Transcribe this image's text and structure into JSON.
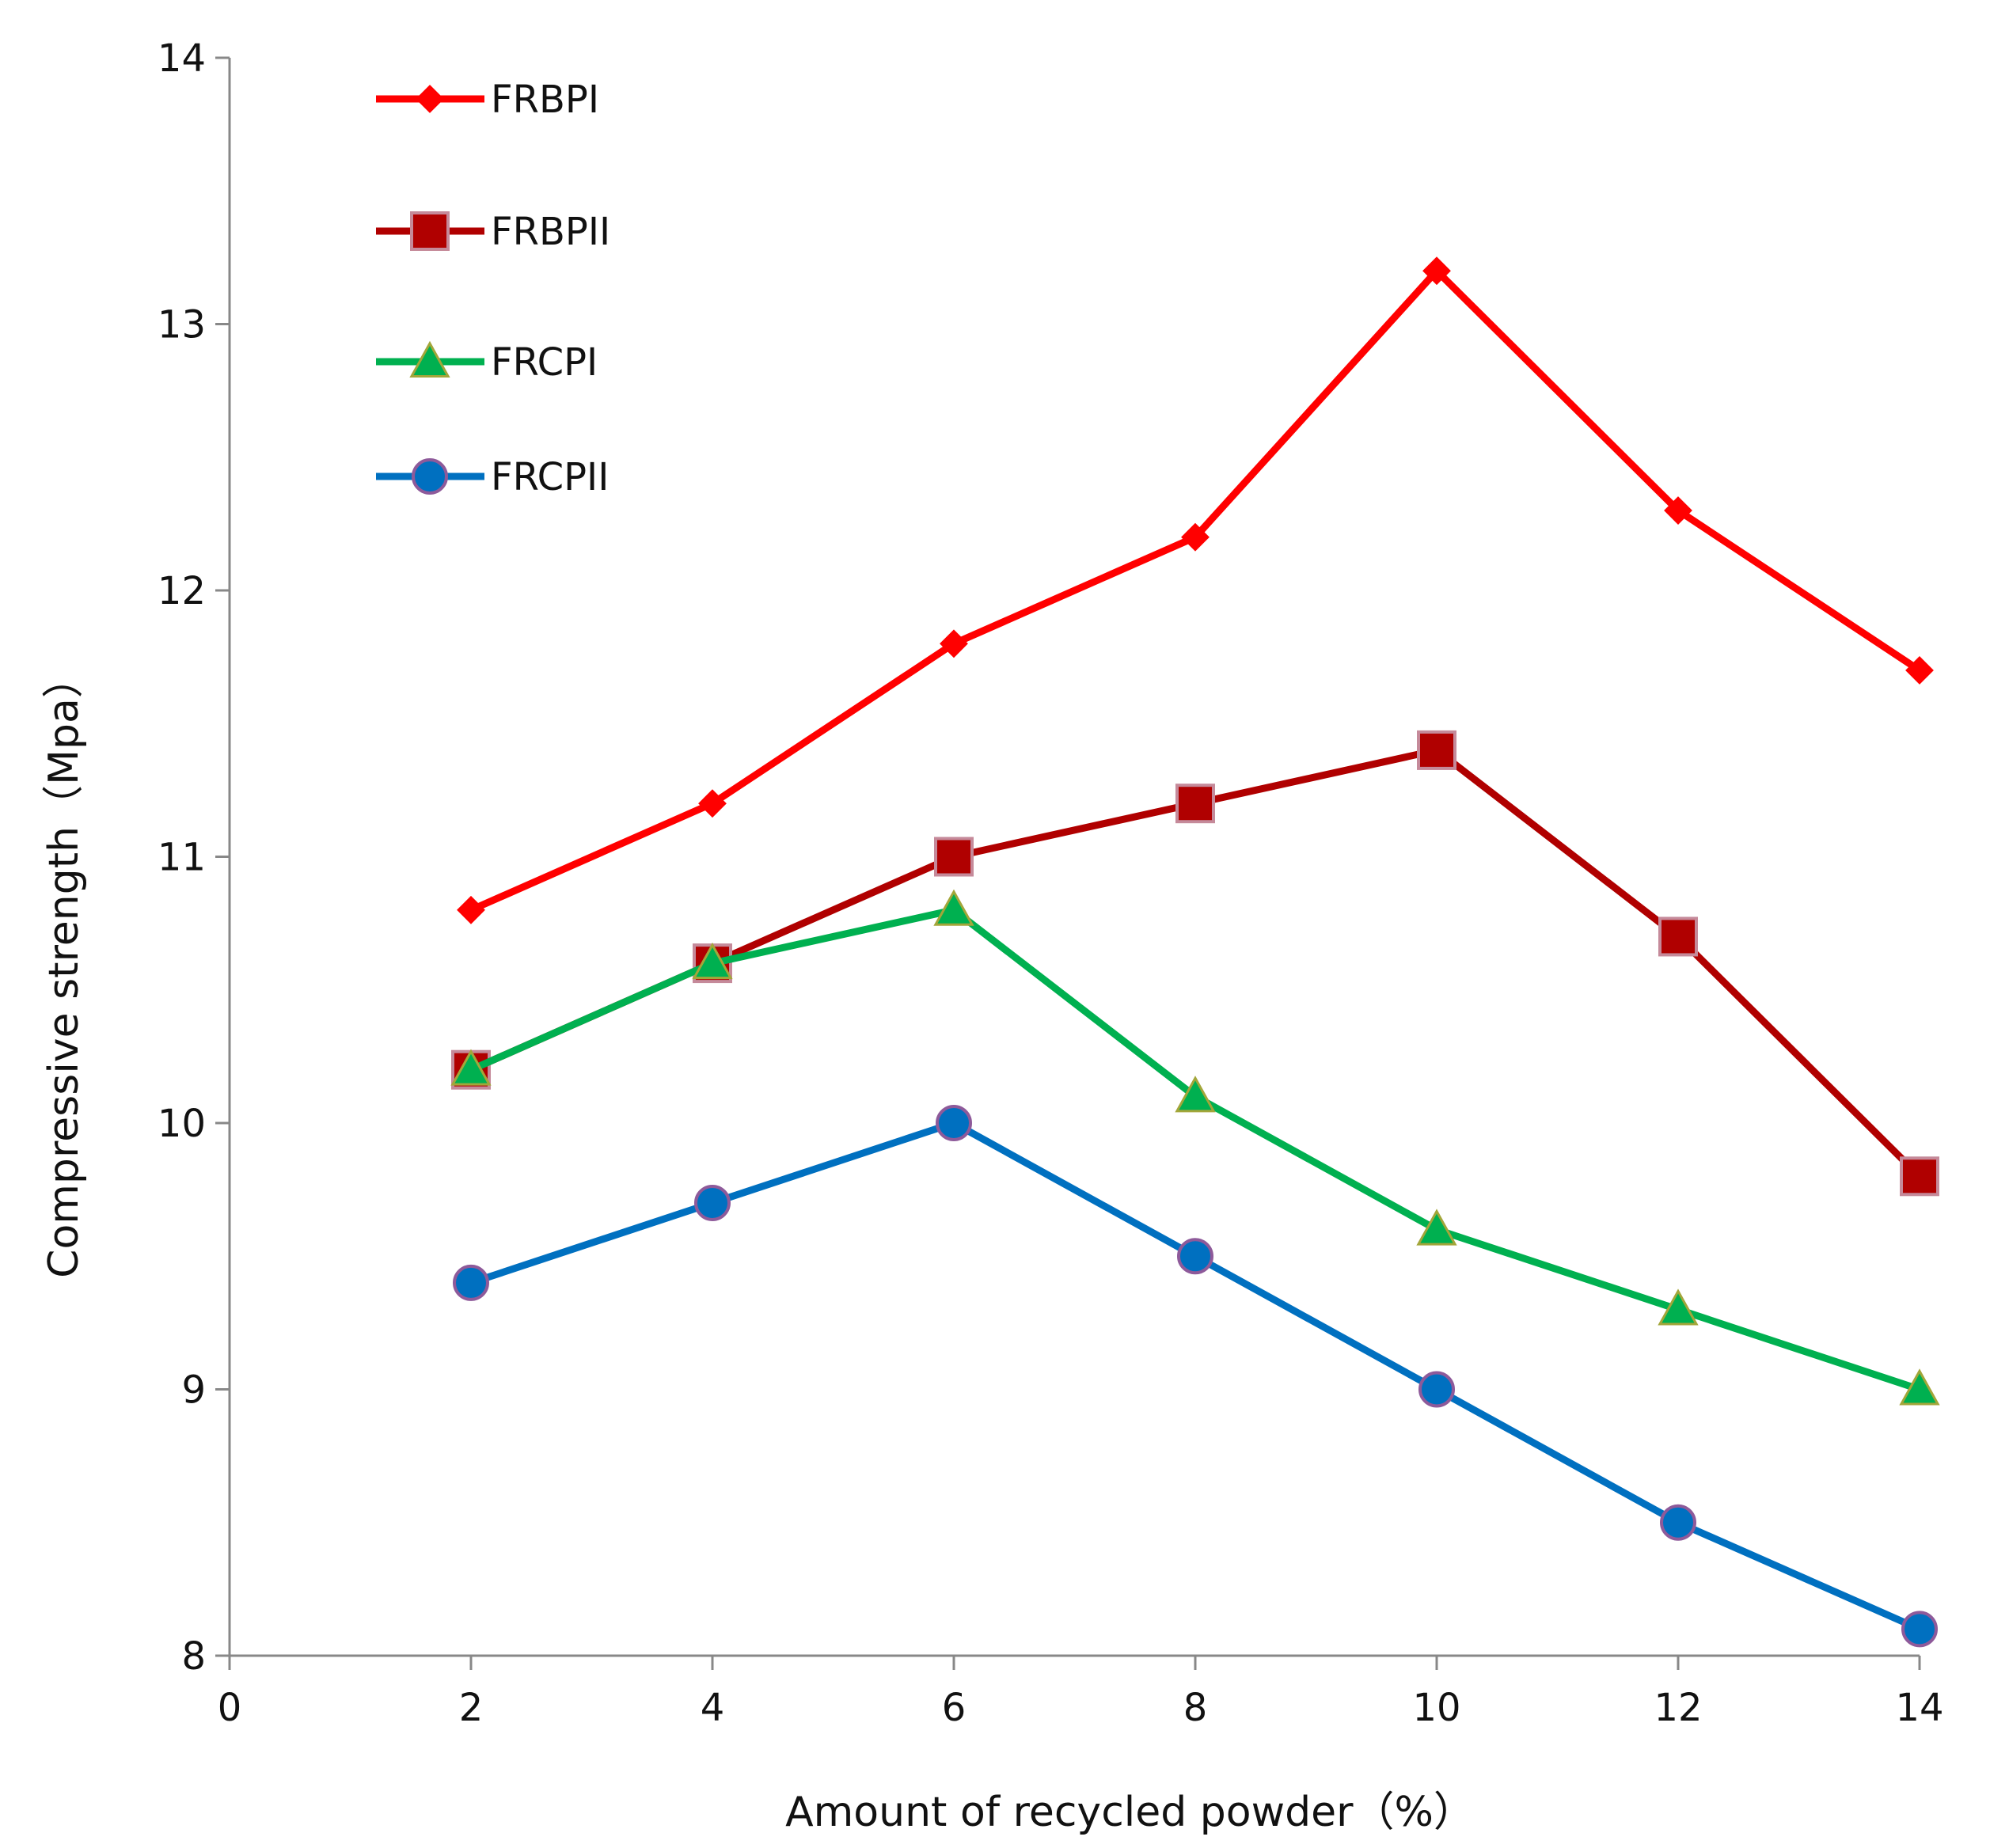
{
  "chart_data": {
    "type": "line",
    "title": "",
    "xlabel": "Amount of recycled powder（%）",
    "ylabel": "Compressive strength（Mpa）",
    "xlim": [
      0,
      14
    ],
    "ylim": [
      8,
      14
    ],
    "xticks": [
      "0",
      "2",
      "4",
      "6",
      "8",
      "10",
      "12",
      "14"
    ],
    "yticks": [
      "8",
      "9",
      "10",
      "11",
      "12",
      "13",
      "14"
    ],
    "grid": false,
    "legend_position": "top-left",
    "x": [
      2,
      4,
      6,
      8,
      10,
      12,
      14
    ],
    "series": [
      {
        "name": "FRBPI",
        "color": "#ff0000",
        "marker": "diamond",
        "values": [
          10.8,
          11.2,
          11.8,
          12.2,
          13.2,
          12.3,
          11.7
        ]
      },
      {
        "name": "FRBPII",
        "color": "#b00000",
        "marker": "square",
        "values": [
          10.2,
          10.6,
          11.0,
          11.2,
          11.4,
          10.7,
          9.8
        ]
      },
      {
        "name": "FRCPI",
        "color": "#00b050",
        "marker": "triangle",
        "values": [
          10.2,
          10.6,
          10.8,
          10.1,
          9.6,
          9.3,
          9.0
        ]
      },
      {
        "name": "FRCPII",
        "color": "#0070c0",
        "marker": "circle",
        "values": [
          9.4,
          9.7,
          10.0,
          9.5,
          9.0,
          8.5,
          8.1
        ]
      }
    ]
  }
}
